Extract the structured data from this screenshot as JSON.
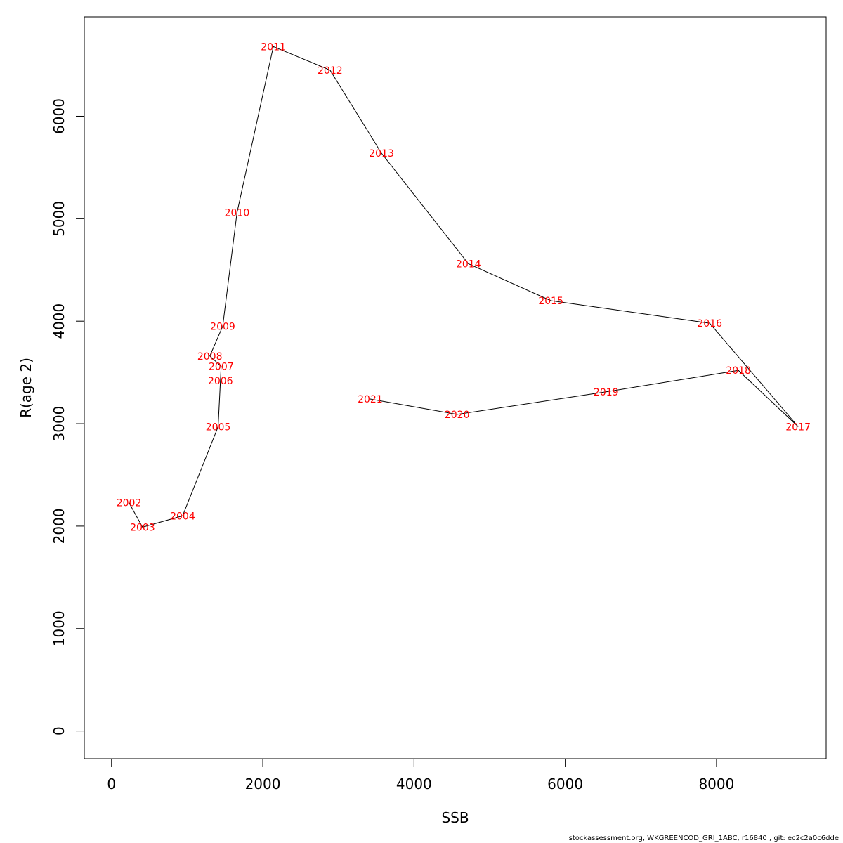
{
  "chart_data": {
    "type": "line",
    "title": "",
    "xlabel": "SSB",
    "ylabel": "R(age 2)",
    "xlim": [
      -360,
      9450
    ],
    "ylim": [
      -270,
      6970
    ],
    "x_ticks": [
      0,
      2000,
      4000,
      6000,
      8000
    ],
    "y_ticks": [
      0,
      1000,
      2000,
      3000,
      4000,
      5000,
      6000
    ],
    "grid": false,
    "label_color": "#ff0000",
    "line_color": "#000000",
    "points": [
      {
        "label": "2002",
        "x": 230,
        "y": 2230
      },
      {
        "label": "2003",
        "x": 410,
        "y": 1990
      },
      {
        "label": "2004",
        "x": 940,
        "y": 2100
      },
      {
        "label": "2005",
        "x": 1410,
        "y": 2970
      },
      {
        "label": "2006",
        "x": 1440,
        "y": 3420
      },
      {
        "label": "2007",
        "x": 1450,
        "y": 3560
      },
      {
        "label": "2008",
        "x": 1300,
        "y": 3660
      },
      {
        "label": "2009",
        "x": 1470,
        "y": 3950
      },
      {
        "label": "2010",
        "x": 1660,
        "y": 5060
      },
      {
        "label": "2011",
        "x": 2140,
        "y": 6680
      },
      {
        "label": "2012",
        "x": 2890,
        "y": 6450
      },
      {
        "label": "2013",
        "x": 3570,
        "y": 5640
      },
      {
        "label": "2014",
        "x": 4720,
        "y": 4560
      },
      {
        "label": "2015",
        "x": 5810,
        "y": 4200
      },
      {
        "label": "2016",
        "x": 7910,
        "y": 3980
      },
      {
        "label": "2017",
        "x": 9080,
        "y": 2970
      },
      {
        "label": "2018",
        "x": 8290,
        "y": 3520
      },
      {
        "label": "2019",
        "x": 6540,
        "y": 3310
      },
      {
        "label": "2020",
        "x": 4570,
        "y": 3090
      },
      {
        "label": "2021",
        "x": 3420,
        "y": 3240
      }
    ]
  },
  "footer": "stockassessment.org, WKGREENCOD_GRI_1ABC, r16840 , git: ec2c2a0c6dde"
}
